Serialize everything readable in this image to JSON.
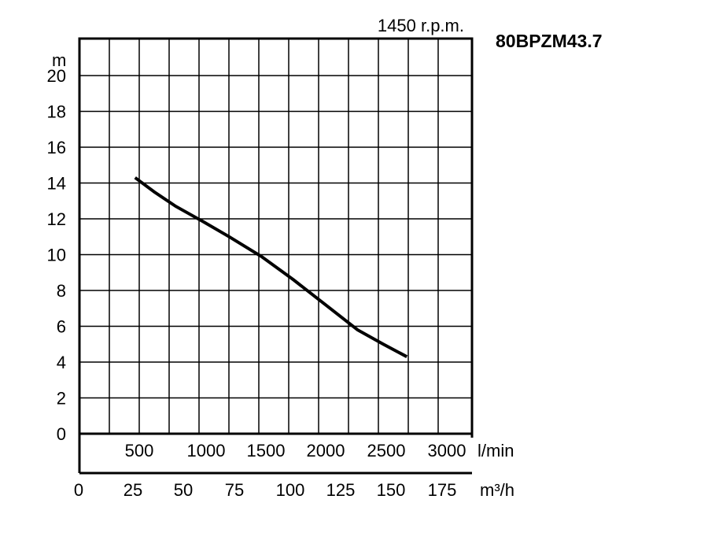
{
  "chart_data": {
    "type": "line",
    "title": "80BPZM43.7",
    "speed_label": "1450 r.p.m.",
    "ylabel": "m",
    "ylim": [
      0,
      22
    ],
    "y_ticks": [
      "0",
      "2",
      "4",
      "6",
      "8",
      "10",
      "12",
      "14",
      "16",
      "18",
      "20"
    ],
    "x_unit_lmin": "l/min",
    "x_ticks_lmin": [
      "500",
      "1000",
      "1500",
      "2000",
      "2500",
      "3000"
    ],
    "x_unit_m3h": "m³/h",
    "x_ticks_m3h": [
      "0",
      "25",
      "50",
      "75",
      "100",
      "125",
      "150",
      "175"
    ],
    "xlim_m3h": [
      0,
      182
    ],
    "grid": true,
    "series": [
      {
        "x": [
          26,
          35,
          45,
          57,
          70,
          85,
          100,
          115,
          130,
          142,
          153
        ],
        "y": [
          14.3,
          13.5,
          12.7,
          11.9,
          11.0,
          9.9,
          8.6,
          7.2,
          5.8,
          5.0,
          4.3
        ],
        "color": "#000000"
      }
    ]
  }
}
